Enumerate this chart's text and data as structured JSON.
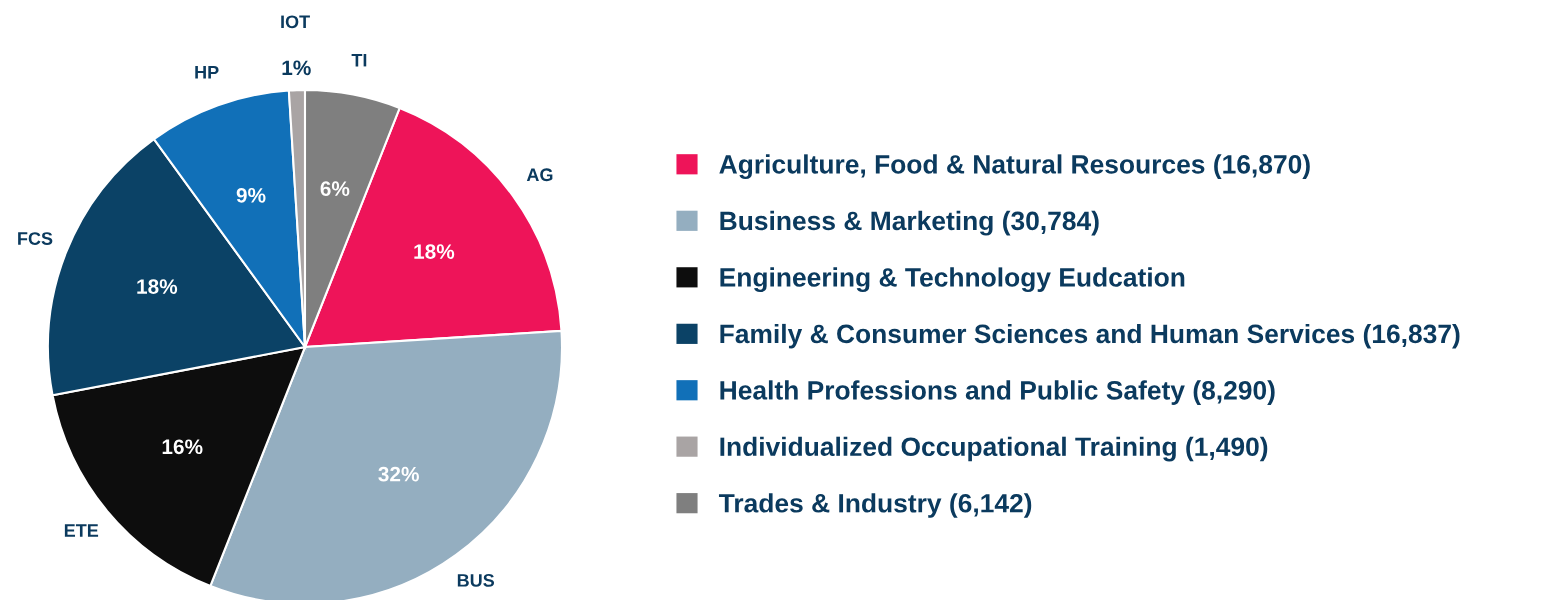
{
  "chart_data": {
    "type": "pie",
    "categories": [
      "Agriculture, Food & Natural Resources (16,870)",
      "Business & Marketing (30,784)",
      "Engineering & Technology Eudcation",
      "Family & Consumer Sciences and Human Services (16,837)",
      "Health Professions and Public Safety (8,290)",
      "Individualized Occupational Training (1,490)",
      "Trades & Industry (6,142)"
    ],
    "values": [
      18,
      32,
      16,
      18,
      9,
      1,
      6
    ],
    "colors": [
      "#ee1459",
      "#94aec0",
      "#0d0d0d",
      "#0b4266",
      "#1170b8",
      "#a9a4a4",
      "#7f7f7f"
    ],
    "annotations": [
      "AG",
      "BUS",
      "ETE",
      "FCS",
      "HP",
      "IOT",
      "TI"
    ],
    "value_labels": [
      "18%",
      "32%",
      "16%",
      "18%",
      "9%",
      "1%",
      "6%"
    ],
    "legend": "right"
  }
}
